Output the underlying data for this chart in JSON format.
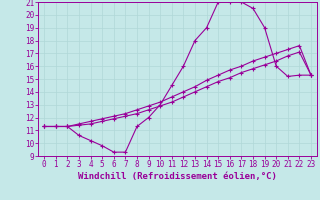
{
  "xlabel": "Windchill (Refroidissement éolien,°C)",
  "xlim": [
    -0.5,
    23.5
  ],
  "ylim": [
    9,
    21
  ],
  "xticks": [
    0,
    1,
    2,
    3,
    4,
    5,
    6,
    7,
    8,
    9,
    10,
    11,
    12,
    13,
    14,
    15,
    16,
    17,
    18,
    19,
    20,
    21,
    22,
    23
  ],
  "yticks": [
    9,
    10,
    11,
    12,
    13,
    14,
    15,
    16,
    17,
    18,
    19,
    20,
    21
  ],
  "bg_color": "#c5e8e8",
  "line_color": "#990099",
  "grid_color": "#b0d8d8",
  "line1_x": [
    0,
    1,
    2,
    3,
    4,
    5,
    6,
    7,
    8,
    9,
    10,
    11,
    12,
    13,
    14,
    15,
    16,
    17,
    18,
    19,
    20,
    21,
    22,
    23
  ],
  "line1_y": [
    11.3,
    11.3,
    11.3,
    10.6,
    10.2,
    9.8,
    9.3,
    9.3,
    11.3,
    12.0,
    13.0,
    14.5,
    16.0,
    18.0,
    19.0,
    21.0,
    21.0,
    21.0,
    20.5,
    19.0,
    16.0,
    15.2,
    15.3,
    15.3
  ],
  "line2_x": [
    0,
    1,
    2,
    3,
    4,
    5,
    6,
    7,
    8,
    9,
    10,
    11,
    12,
    13,
    14,
    15,
    16,
    17,
    18,
    19,
    20,
    21,
    22,
    23
  ],
  "line2_y": [
    11.3,
    11.3,
    11.3,
    11.5,
    11.7,
    11.9,
    12.1,
    12.3,
    12.6,
    12.9,
    13.2,
    13.6,
    14.0,
    14.4,
    14.9,
    15.3,
    15.7,
    16.0,
    16.4,
    16.7,
    17.0,
    17.3,
    17.6,
    15.3
  ],
  "line3_x": [
    0,
    1,
    2,
    3,
    4,
    5,
    6,
    7,
    8,
    9,
    10,
    11,
    12,
    13,
    14,
    15,
    16,
    17,
    18,
    19,
    20,
    21,
    22,
    23
  ],
  "line3_y": [
    11.3,
    11.3,
    11.3,
    11.4,
    11.5,
    11.7,
    11.9,
    12.1,
    12.3,
    12.6,
    12.9,
    13.2,
    13.6,
    14.0,
    14.4,
    14.8,
    15.1,
    15.5,
    15.8,
    16.1,
    16.4,
    16.8,
    17.1,
    15.3
  ],
  "tick_fontsize": 5.5,
  "label_fontsize": 6.5
}
